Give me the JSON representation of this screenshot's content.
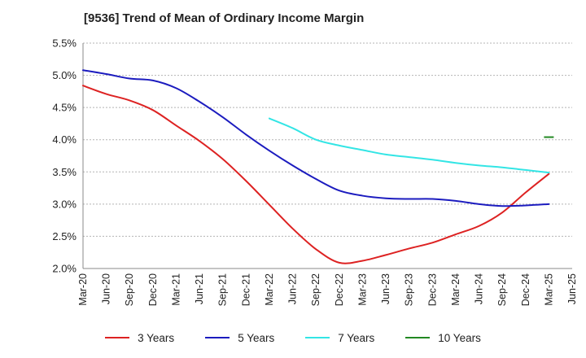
{
  "chart_data": {
    "type": "line",
    "title": "[9536]  Trend of Mean of Ordinary Income Margin",
    "xlabel": "",
    "ylabel": "",
    "x_ticks": [
      "Mar-20",
      "Jun-20",
      "Sep-20",
      "Dec-20",
      "Mar-21",
      "Jun-21",
      "Sep-21",
      "Dec-21",
      "Mar-22",
      "Jun-22",
      "Sep-22",
      "Dec-22",
      "Mar-23",
      "Jun-23",
      "Sep-23",
      "Dec-23",
      "Mar-24",
      "Jun-24",
      "Sep-24",
      "Dec-24",
      "Mar-25",
      "Jun-25"
    ],
    "y_ticks": [
      "2.0%",
      "2.5%",
      "3.0%",
      "3.5%",
      "4.0%",
      "4.5%",
      "5.0%",
      "5.5%"
    ],
    "y_tick_values": [
      2.0,
      2.5,
      3.0,
      3.5,
      4.0,
      4.5,
      5.0,
      5.5
    ],
    "ylim": [
      2.0,
      5.5
    ],
    "y_unit": "%",
    "grid": true,
    "legend_position": "bottom",
    "series": [
      {
        "name": "3 Years",
        "color": "#dd2222",
        "x": [
          "Mar-20",
          "Jun-20",
          "Sep-20",
          "Dec-20",
          "Mar-21",
          "Jun-21",
          "Sep-21",
          "Dec-21",
          "Mar-22",
          "Jun-22",
          "Sep-22",
          "Dec-22",
          "Mar-23",
          "Jun-23",
          "Sep-23",
          "Dec-23",
          "Mar-24",
          "Jun-24",
          "Sep-24",
          "Dec-24",
          "Mar-25"
        ],
        "values": [
          4.84,
          4.71,
          4.61,
          4.46,
          4.22,
          3.98,
          3.7,
          3.36,
          2.99,
          2.62,
          2.3,
          2.09,
          2.12,
          2.21,
          2.31,
          2.4,
          2.53,
          2.66,
          2.87,
          3.18,
          3.47
        ]
      },
      {
        "name": "5 Years",
        "color": "#1c1cbf",
        "x": [
          "Mar-20",
          "Jun-20",
          "Sep-20",
          "Dec-20",
          "Mar-21",
          "Jun-21",
          "Sep-21",
          "Dec-21",
          "Mar-22",
          "Jun-22",
          "Sep-22",
          "Dec-22",
          "Mar-23",
          "Jun-23",
          "Sep-23",
          "Dec-23",
          "Mar-24",
          "Jun-24",
          "Sep-24",
          "Dec-24",
          "Mar-25"
        ],
        "values": [
          5.08,
          5.02,
          4.95,
          4.92,
          4.8,
          4.59,
          4.35,
          4.08,
          3.83,
          3.6,
          3.39,
          3.21,
          3.13,
          3.09,
          3.08,
          3.08,
          3.05,
          3.0,
          2.97,
          2.98,
          3.0
        ]
      },
      {
        "name": "7 Years",
        "color": "#33e5e5",
        "x": [
          "Mar-22",
          "Jun-22",
          "Sep-22",
          "Dec-22",
          "Mar-23",
          "Jun-23",
          "Sep-23",
          "Dec-23",
          "Mar-24",
          "Jun-24",
          "Sep-24",
          "Dec-24",
          "Mar-25"
        ],
        "values": [
          4.33,
          4.18,
          4.0,
          3.91,
          3.84,
          3.77,
          3.73,
          3.69,
          3.64,
          3.6,
          3.57,
          3.53,
          3.49
        ]
      },
      {
        "name": "10 Years",
        "color": "#228822",
        "x": [
          "Mar-25"
        ],
        "values": [
          4.04
        ]
      }
    ]
  }
}
